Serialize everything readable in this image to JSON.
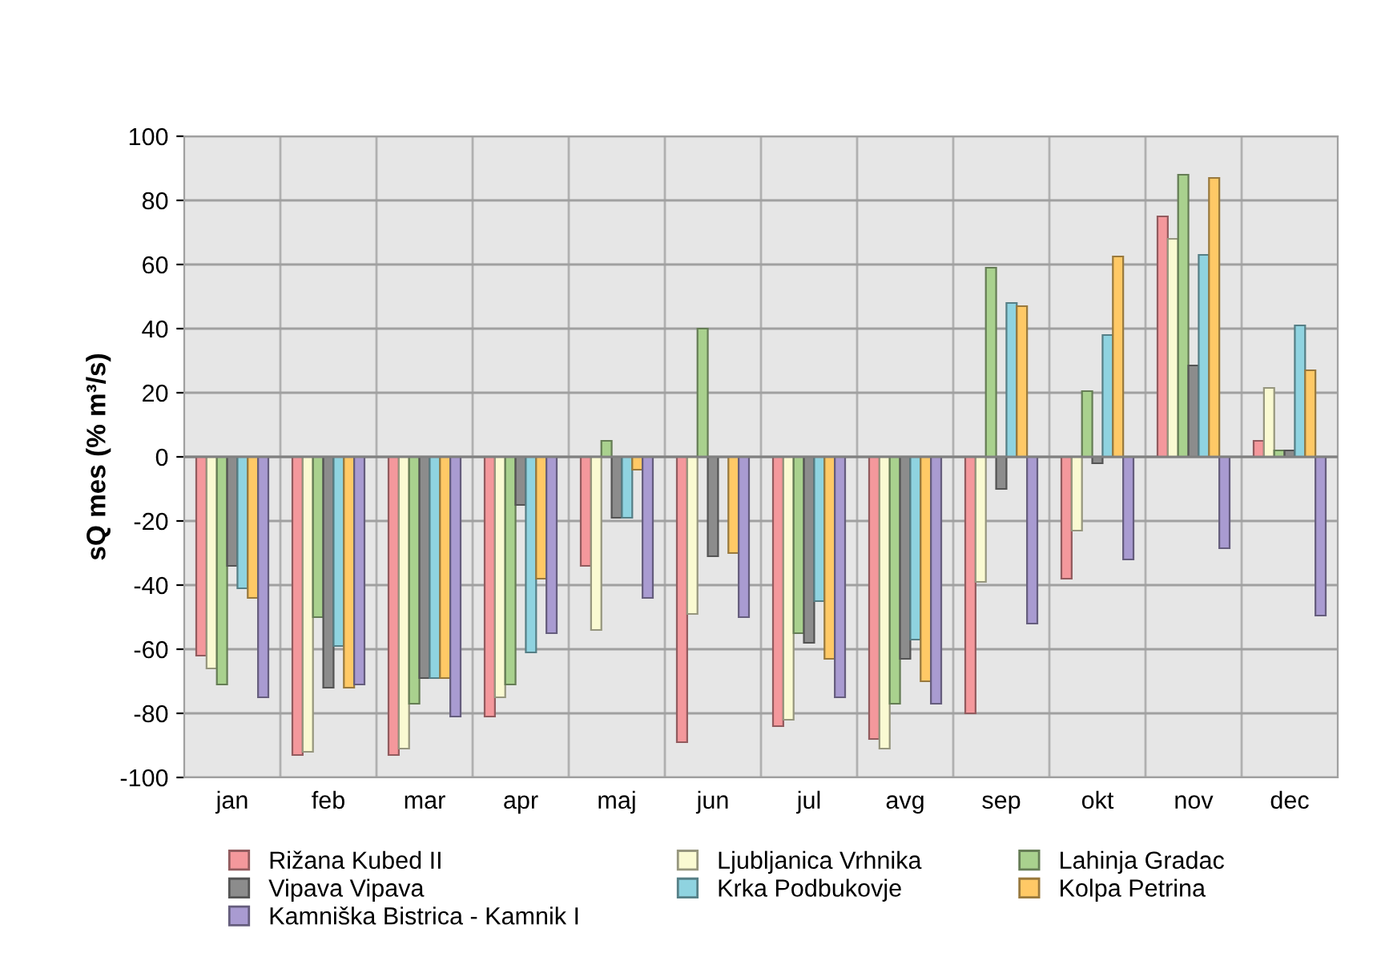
{
  "chart_data": {
    "type": "bar",
    "ylabel": "sQ mes (% m³/s)",
    "categories": [
      "jan",
      "feb",
      "mar",
      "apr",
      "maj",
      "jun",
      "jul",
      "avg",
      "sep",
      "okt",
      "nov",
      "dec"
    ],
    "series": [
      {
        "name": "Rižana Kubed II",
        "color": "#f4989c",
        "values": [
          -62,
          -93,
          -93,
          -81,
          -34,
          -89,
          -84,
          -88,
          -80,
          -38,
          75,
          5
        ]
      },
      {
        "name": "Ljubljanica Vrhnika",
        "color": "#fafad2",
        "values": [
          -66,
          -92,
          -91,
          -75,
          -54,
          -49,
          -82,
          -91,
          -39,
          -23,
          68,
          21.5
        ]
      },
      {
        "name": "Lahinja Gradac",
        "color": "#a9d18e",
        "values": [
          -71,
          -50,
          -77,
          -71,
          5,
          40,
          -55,
          -77,
          59,
          20.5,
          88,
          2
        ]
      },
      {
        "name": "Vipava Vipava",
        "color": "#8c8c8c",
        "values": [
          -34,
          -72,
          -69,
          -15,
          -19,
          -31,
          -58,
          -63,
          -10,
          -2,
          28.5,
          2
        ]
      },
      {
        "name": "Krka Podbukovje",
        "color": "#8fd3e0",
        "values": [
          -41,
          -59,
          -69,
          -61,
          -19,
          null,
          -45,
          -57,
          48,
          38,
          63,
          41
        ]
      },
      {
        "name": "Kolpa Petrina",
        "color": "#ffc966",
        "values": [
          -44,
          -72,
          -69,
          -38,
          -4,
          -30,
          -63,
          -70,
          47,
          62.5,
          87,
          27
        ]
      },
      {
        "name": "Kamniška Bistrica - Kamnik I",
        "color": "#a99bd1",
        "values": [
          -75,
          -71,
          -81,
          -55,
          -44,
          -50,
          -75,
          -77,
          -52,
          -32,
          -28.5,
          -49.5
        ]
      }
    ],
    "ylim": [
      -100,
      100
    ],
    "yticks": [
      -100,
      -80,
      -60,
      -40,
      -20,
      0,
      20,
      40,
      60,
      80,
      100
    ],
    "grid": true,
    "legend": "bottom"
  }
}
